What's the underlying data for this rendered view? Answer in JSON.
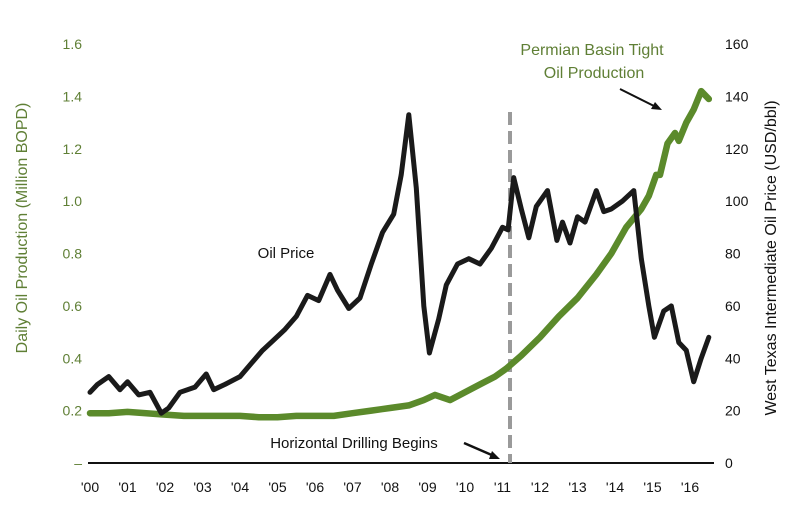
{
  "chart_data": {
    "type": "line",
    "title": "",
    "xlabel": "",
    "ylabel_left": "Daily Oil Production (Million BOPD)",
    "ylabel_right": "West Texas Intermediate Oil Price (USD/bbl)",
    "xlim": [
      2000,
      2016
    ],
    "ylim_left": [
      0,
      1.6
    ],
    "ylim_right": [
      0,
      160
    ],
    "x_tick_labels": [
      "'00",
      "'01",
      "'02",
      "'03",
      "'04",
      "'05",
      "'06",
      "'07",
      "'08",
      "'09",
      "'10",
      "'11",
      "'12",
      "'13",
      "'14",
      "'15",
      "'16"
    ],
    "left_tick_labels": [
      "–",
      "0.2",
      "0.4",
      "0.6",
      "0.8",
      "1.0",
      "1.2",
      "1.4",
      "1.6"
    ],
    "right_tick_labels": [
      "0",
      "20",
      "40",
      "60",
      "80",
      "100",
      "120",
      "140",
      "160"
    ],
    "grid": false,
    "colors": {
      "production": "#5b8a2b",
      "price": "#1a1a1a",
      "left_axis_text": "#5f7f35",
      "marker_line": "#9a9a9a"
    },
    "series": [
      {
        "name": "Permian Basin Tight Oil Production",
        "axis": "left",
        "x": [
          2000,
          2000.5,
          2001,
          2001.5,
          2002,
          2002.5,
          2003,
          2003.5,
          2004,
          2004.5,
          2005,
          2005.5,
          2006,
          2006.5,
          2007,
          2007.5,
          2008,
          2008.5,
          2008.9,
          2009.2,
          2009.6,
          2010,
          2010.4,
          2010.8,
          2011.1,
          2011.5,
          2012,
          2012.5,
          2013,
          2013.5,
          2013.9,
          2014.3,
          2014.7,
          2014.9,
          2015.1,
          2015.2,
          2015.4,
          2015.6,
          2015.7,
          2015.9,
          2016.1,
          2016.3,
          2016.5
        ],
        "values": [
          0.19,
          0.19,
          0.195,
          0.19,
          0.185,
          0.18,
          0.18,
          0.18,
          0.18,
          0.175,
          0.175,
          0.18,
          0.18,
          0.18,
          0.19,
          0.2,
          0.21,
          0.22,
          0.24,
          0.26,
          0.24,
          0.27,
          0.3,
          0.33,
          0.36,
          0.41,
          0.48,
          0.56,
          0.63,
          0.72,
          0.8,
          0.9,
          0.97,
          1.02,
          1.1,
          1.1,
          1.22,
          1.26,
          1.23,
          1.3,
          1.35,
          1.42,
          1.39
        ]
      },
      {
        "name": "Oil Price",
        "axis": "right",
        "x": [
          2000,
          2000.2,
          2000.5,
          2000.8,
          2001,
          2001.3,
          2001.6,
          2001.9,
          2002.1,
          2002.4,
          2002.8,
          2003.1,
          2003.3,
          2003.6,
          2004,
          2004.3,
          2004.6,
          2004.9,
          2005.2,
          2005.5,
          2005.8,
          2006.1,
          2006.4,
          2006.6,
          2006.9,
          2007.2,
          2007.5,
          2007.8,
          2008.1,
          2008.3,
          2008.5,
          2008.7,
          2008.9,
          2009.05,
          2009.3,
          2009.5,
          2009.8,
          2010.1,
          2010.4,
          2010.7,
          2011.0,
          2011.15,
          2011.3,
          2011.5,
          2011.7,
          2011.9,
          2012.2,
          2012.45,
          2012.6,
          2012.8,
          2013.0,
          2013.2,
          2013.5,
          2013.7,
          2013.9,
          2014.2,
          2014.5,
          2014.7,
          2014.9,
          2015.05,
          2015.3,
          2015.5,
          2015.7,
          2015.9,
          2016.1,
          2016.3,
          2016.5
        ],
        "values": [
          27,
          30,
          33,
          28,
          31,
          26,
          27,
          19,
          21,
          27,
          29,
          34,
          28,
          30,
          33,
          38,
          43,
          47,
          51,
          56,
          64,
          62,
          72,
          66,
          59,
          63,
          76,
          88,
          95,
          110,
          133,
          105,
          60,
          42,
          55,
          68,
          76,
          78,
          76,
          82,
          90,
          89,
          109,
          97,
          86,
          98,
          104,
          85,
          92,
          84,
          94,
          92,
          104,
          96,
          97,
          100,
          104,
          78,
          60,
          48,
          58,
          60,
          46,
          43,
          31,
          40,
          48
        ]
      }
    ],
    "annotations": {
      "oil_price_label": "Oil Price",
      "production_label_line1": "Permian Basin Tight",
      "production_label_line2": "Oil Production",
      "drilling_label": "Horizontal Drilling Begins",
      "drilling_year": 2011.2
    },
    "legend": "none"
  }
}
